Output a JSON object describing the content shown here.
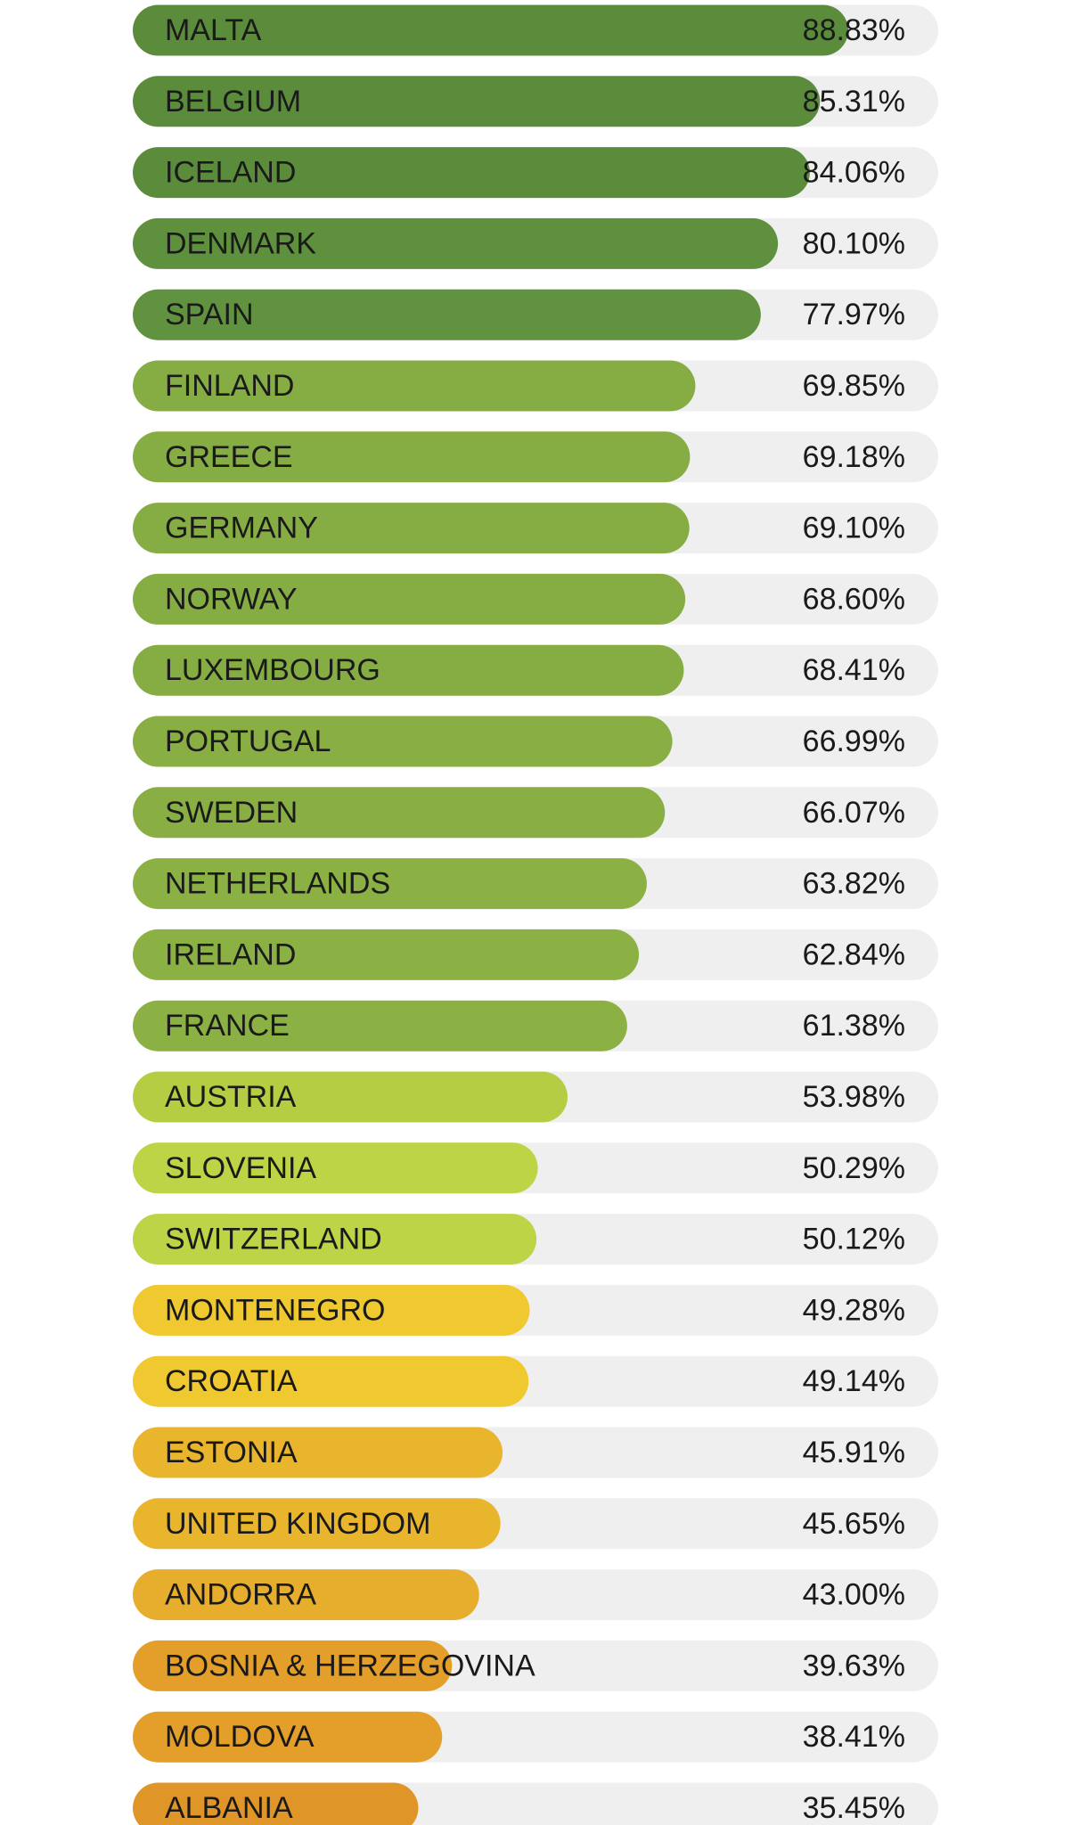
{
  "chart_data": {
    "type": "bar",
    "orientation": "horizontal",
    "categories": [
      "MALTA",
      "BELGIUM",
      "ICELAND",
      "DENMARK",
      "SPAIN",
      "FINLAND",
      "GREECE",
      "GERMANY",
      "NORWAY",
      "LUXEMBOURG",
      "PORTUGAL",
      "SWEDEN",
      "NETHERLANDS",
      "IRELAND",
      "FRANCE",
      "AUSTRIA",
      "SLOVENIA",
      "SWITZERLAND",
      "MONTENEGRO",
      "CROATIA",
      "ESTONIA",
      "UNITED KINGDOM",
      "ANDORRA",
      "BOSNIA & HERZEGOVINA",
      "MOLDOVA",
      "ALBANIA"
    ],
    "values": [
      88.83,
      85.31,
      84.06,
      80.1,
      77.97,
      69.85,
      69.18,
      69.1,
      68.6,
      68.41,
      66.99,
      66.07,
      63.82,
      62.84,
      61.38,
      53.98,
      50.29,
      50.12,
      49.28,
      49.14,
      45.91,
      45.65,
      43.0,
      39.63,
      38.41,
      35.45
    ],
    "value_labels": [
      "88.83%",
      "85.31%",
      "84.06%",
      "80.10%",
      "77.97%",
      "69.85%",
      "69.18%",
      "69.10%",
      "68.60%",
      "68.41%",
      "66.99%",
      "66.07%",
      "63.82%",
      "62.84%",
      "61.38%",
      "53.98%",
      "50.29%",
      "50.12%",
      "49.28%",
      "49.14%",
      "45.91%",
      "45.65%",
      "43.00%",
      "39.63%",
      "38.41%",
      "35.45%"
    ],
    "colors": [
      "#5b8c3c",
      "#5b8c3c",
      "#5b8c3c",
      "#5f903e",
      "#619240",
      "#86ad44",
      "#86ad44",
      "#86ad44",
      "#86ad44",
      "#86ad44",
      "#88ae44",
      "#88ae44",
      "#8bb145",
      "#8bb145",
      "#8bb145",
      "#b5cd42",
      "#bcd446",
      "#bcd446",
      "#f0c930",
      "#f0c930",
      "#e8b52d",
      "#e8b52d",
      "#e6ae2c",
      "#e39f29",
      "#e39f29",
      "#df9527"
    ],
    "track_color": "#efefef",
    "xlim": [
      0,
      100
    ]
  }
}
